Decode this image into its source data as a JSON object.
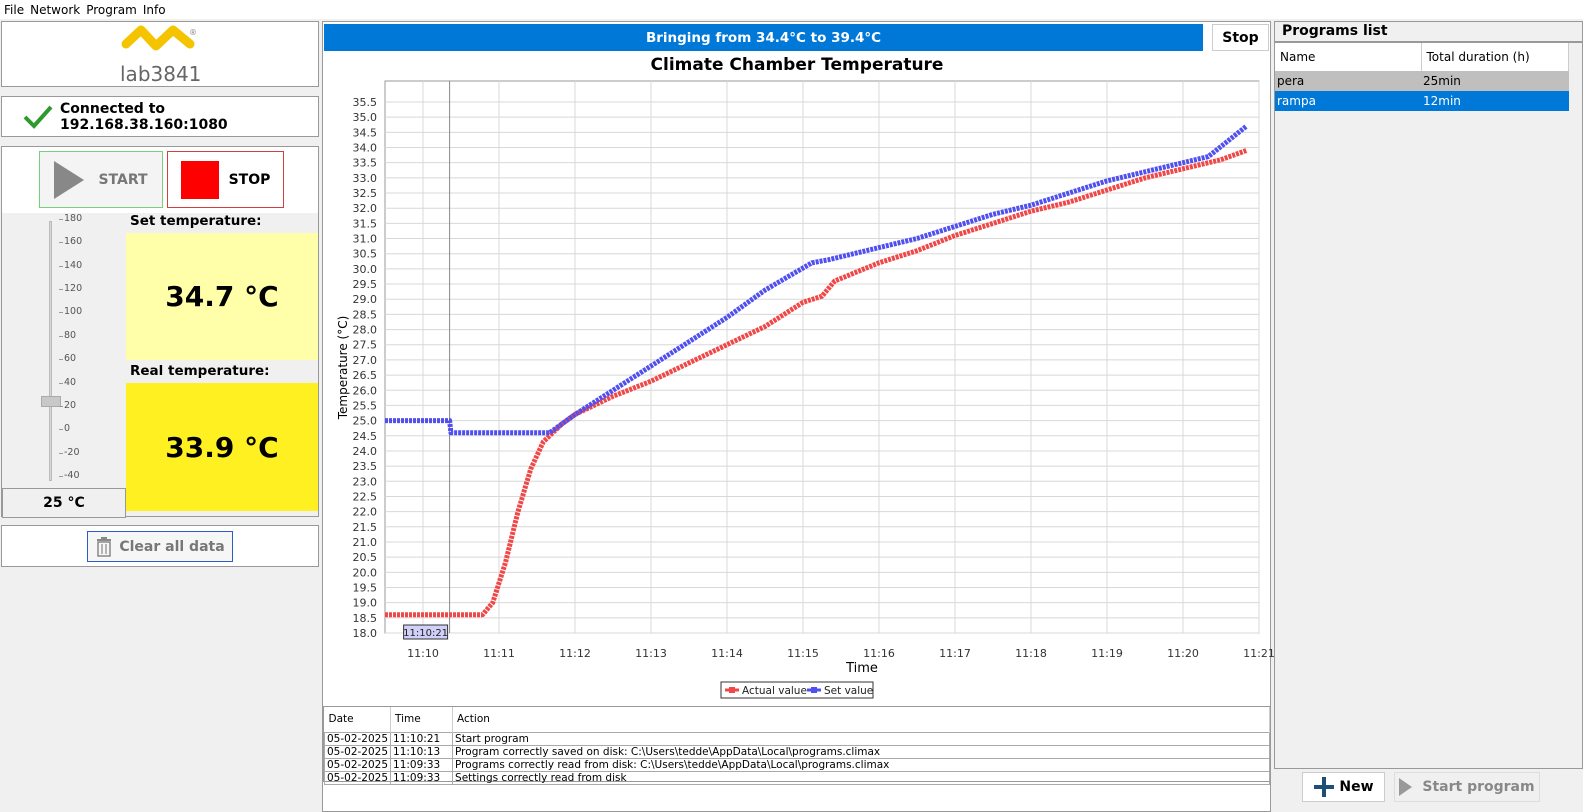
{
  "menu": [
    "File",
    "Network",
    "Program",
    "Info"
  ],
  "logo": {
    "text": "lab3841",
    "registered": "®"
  },
  "connection": {
    "text": "Connected to 192.168.38.160:1080"
  },
  "controls": {
    "start_label": "START",
    "stop_label": "STOP",
    "set_label": "Set temperature:",
    "set_value": "34.7 °C",
    "real_label": "Real temperature:",
    "real_value": "33.9 °C",
    "slider_ticks": [
      "180",
      "160",
      "140",
      "120",
      "100",
      "80",
      "60",
      "40",
      "20",
      "0",
      "-20",
      "-40"
    ],
    "slider_value": "25 °C",
    "slider_level": 25,
    "clear_label": "Clear all data"
  },
  "status_bar": {
    "text": "Bringing from  34.4°C to  39.4°C",
    "stop_label": "Stop"
  },
  "chart_data": {
    "type": "line",
    "title": "Climate Chamber Temperature",
    "xlabel": "Time",
    "ylabel": "Temperature (°C)",
    "xlim": [
      "11:09:30",
      "11:21:00"
    ],
    "ylim": [
      18.0,
      35.5
    ],
    "y_ticks": [
      "18.0",
      "18.5",
      "19.0",
      "19.5",
      "20.0",
      "20.5",
      "21.0",
      "21.5",
      "22.0",
      "22.5",
      "23.0",
      "23.5",
      "24.0",
      "24.5",
      "25.0",
      "25.5",
      "26.0",
      "26.5",
      "27.0",
      "27.5",
      "28.0",
      "28.5",
      "29.0",
      "29.5",
      "30.0",
      "30.5",
      "31.0",
      "31.5",
      "32.0",
      "32.5",
      "33.0",
      "33.5",
      "34.0",
      "34.5",
      "35.0",
      "35.5"
    ],
    "x_ticks": [
      "11:10",
      "11:11",
      "11:12",
      "11:13",
      "11:14",
      "11:15",
      "11:16",
      "11:17",
      "11:18",
      "11:19",
      "11:20",
      "11:21"
    ],
    "crosshair": {
      "time": "11:10:21"
    },
    "grid": true,
    "legend": "bottom-center",
    "series": [
      {
        "name": "Actual value",
        "color": "#f04848",
        "points": [
          [
            "11:09:30",
            18.6
          ],
          [
            "11:10:30",
            18.6
          ],
          [
            "11:10:47",
            18.6
          ],
          [
            "11:10:55",
            19.0
          ],
          [
            "11:11:05",
            20.3
          ],
          [
            "11:11:15",
            22.0
          ],
          [
            "11:11:25",
            23.4
          ],
          [
            "11:11:35",
            24.3
          ],
          [
            "11:11:50",
            24.9
          ],
          [
            "11:12:00",
            25.2
          ],
          [
            "11:12:30",
            25.8
          ],
          [
            "11:13:00",
            26.3
          ],
          [
            "11:13:30",
            26.9
          ],
          [
            "11:14:00",
            27.5
          ],
          [
            "11:14:30",
            28.1
          ],
          [
            "11:15:00",
            28.9
          ],
          [
            "11:15:15",
            29.1
          ],
          [
            "11:15:25",
            29.6
          ],
          [
            "11:16:00",
            30.2
          ],
          [
            "11:16:30",
            30.6
          ],
          [
            "11:17:00",
            31.1
          ],
          [
            "11:17:30",
            31.5
          ],
          [
            "11:18:00",
            31.9
          ],
          [
            "11:18:30",
            32.2
          ],
          [
            "11:19:00",
            32.6
          ],
          [
            "11:19:30",
            33.0
          ],
          [
            "11:20:00",
            33.3
          ],
          [
            "11:20:30",
            33.6
          ],
          [
            "11:20:50",
            33.9
          ]
        ]
      },
      {
        "name": "Set value",
        "color": "#5050f0",
        "points": [
          [
            "11:09:30",
            25.0
          ],
          [
            "11:10:21",
            25.0
          ],
          [
            "11:10:22",
            24.6
          ],
          [
            "11:11:40",
            24.6
          ],
          [
            "11:12:00",
            25.2
          ],
          [
            "11:12:30",
            26.0
          ],
          [
            "11:13:00",
            26.8
          ],
          [
            "11:13:30",
            27.6
          ],
          [
            "11:14:00",
            28.4
          ],
          [
            "11:14:30",
            29.3
          ],
          [
            "11:15:07",
            30.2
          ],
          [
            "11:15:20",
            30.3
          ],
          [
            "11:16:00",
            30.7
          ],
          [
            "11:16:30",
            31.0
          ],
          [
            "11:17:00",
            31.4
          ],
          [
            "11:17:30",
            31.8
          ],
          [
            "11:18:00",
            32.1
          ],
          [
            "11:18:30",
            32.5
          ],
          [
            "11:19:00",
            32.9
          ],
          [
            "11:19:30",
            33.2
          ],
          [
            "11:20:00",
            33.5
          ],
          [
            "11:20:20",
            33.7
          ],
          [
            "11:20:50",
            34.7
          ]
        ]
      }
    ]
  },
  "log": {
    "headers": [
      "Date",
      "Time",
      "Action"
    ],
    "rows": [
      [
        "05-02-2025",
        "11:10:21",
        "Start program"
      ],
      [
        "05-02-2025",
        "11:10:13",
        "Program correctly saved on disk: C:\\Users\\tedde\\AppData\\Local\\programs.climax"
      ],
      [
        "05-02-2025",
        "11:09:33",
        "Programs correctly read from disk: C:\\Users\\tedde\\AppData\\Local\\programs.climax"
      ],
      [
        "05-02-2025",
        "11:09:33",
        "Settings correctly read from disk"
      ]
    ]
  },
  "programs": {
    "title": "Programs list",
    "headers": [
      "Name",
      "Total duration (h)"
    ],
    "rows": [
      {
        "name": "pera",
        "duration": "25min"
      },
      {
        "name": "rampa",
        "duration": "12min"
      }
    ],
    "new_label": "New",
    "start_label": "Start program"
  }
}
